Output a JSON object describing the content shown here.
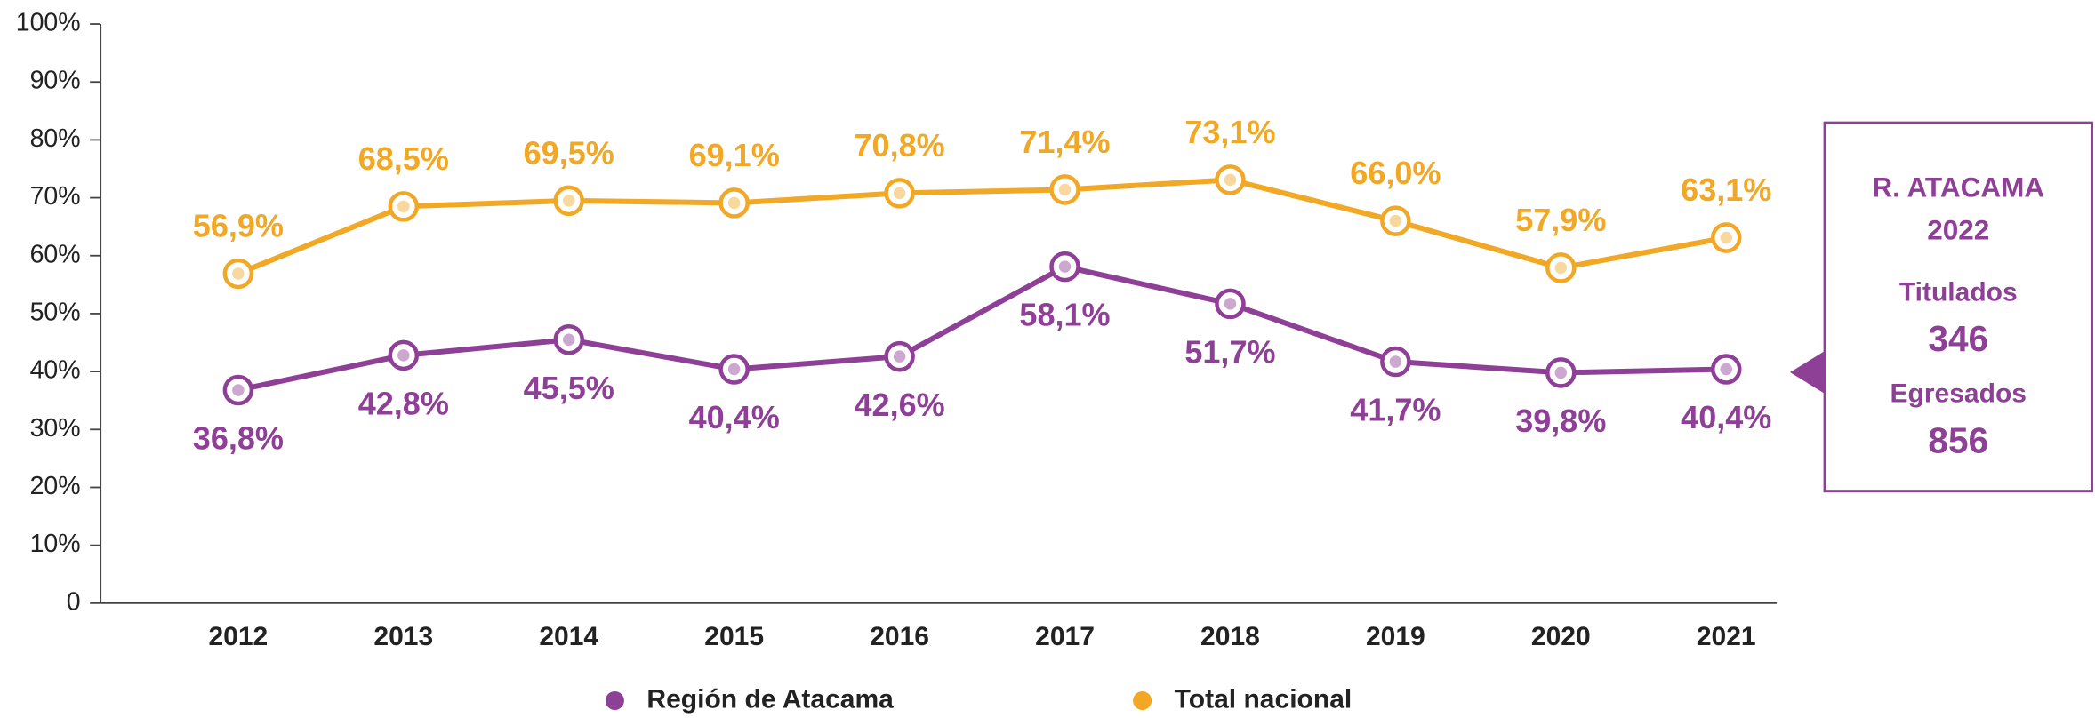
{
  "chart_data": {
    "type": "line",
    "categories": [
      "2012",
      "2013",
      "2014",
      "2015",
      "2016",
      "2017",
      "2018",
      "2019",
      "2020",
      "2021"
    ],
    "series": [
      {
        "name": "Región de Atacama",
        "color": "#8e3f96",
        "values": [
          36.8,
          42.8,
          45.5,
          40.4,
          42.6,
          58.1,
          51.7,
          41.7,
          39.8,
          40.4
        ],
        "value_labels": [
          "36,8%",
          "42,8%",
          "45,5%",
          "40,4%",
          "42,6%",
          "58,1%",
          "51,7%",
          "41,7%",
          "39,8%",
          "40,4%"
        ]
      },
      {
        "name": "Total nacional",
        "color": "#f0a826",
        "values": [
          56.9,
          68.5,
          69.5,
          69.1,
          70.8,
          71.4,
          73.1,
          66.0,
          57.9,
          63.1
        ],
        "value_labels": [
          "56,9%",
          "68,5%",
          "69,5%",
          "69,1%",
          "70,8%",
          "71,4%",
          "73,1%",
          "66,0%",
          "57,9%",
          "63,1%"
        ]
      }
    ],
    "ylim": [
      0,
      100
    ],
    "yticks": [
      0,
      {
        "value": 10,
        "label": "10%"
      },
      {
        "value": 20,
        "label": "20%"
      },
      {
        "value": 30,
        "label": "30%"
      },
      {
        "value": 40,
        "label": "40%"
      },
      {
        "value": 50,
        "label": "50%"
      },
      {
        "value": 60,
        "label": "60%"
      },
      {
        "value": 70,
        "label": "70%"
      },
      {
        "value": 80,
        "label": "80%"
      },
      {
        "value": 90,
        "label": "90%"
      },
      {
        "value": 100,
        "label": "100%"
      }
    ],
    "grid": false,
    "legend": "bottom",
    "side_box": {
      "title": "R. ATACAMA",
      "year": "2022",
      "items": [
        {
          "label": "Titulados",
          "value": 346
        },
        {
          "label": "Egresados",
          "value": 856
        }
      ]
    }
  }
}
